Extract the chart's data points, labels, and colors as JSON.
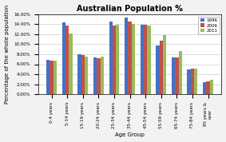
{
  "title": "Australian Population %",
  "xlabel": "Age Group",
  "ylabel": "Percentage of the whole population",
  "categories": [
    "0-4 years",
    "5-14 years",
    "15-19 years",
    "20-24 years",
    "25-34 years",
    "35-44 years",
    "45-54 years",
    "55-59 years",
    "65-74 years",
    "75-84 years",
    "85 years &\nover"
  ],
  "series": {
    "1996": [
      6.8,
      14.3,
      8.0,
      7.3,
      14.6,
      15.3,
      13.9,
      9.8,
      7.3,
      5.0,
      2.4
    ],
    "2006": [
      6.7,
      13.7,
      7.9,
      7.2,
      13.8,
      14.6,
      13.9,
      10.7,
      7.3,
      5.2,
      2.5
    ],
    "2011": [
      6.7,
      12.2,
      7.5,
      7.5,
      13.9,
      14.1,
      13.8,
      11.8,
      8.6,
      5.2,
      2.9
    ]
  },
  "colors": {
    "1996": "#4472c4",
    "2006": "#c0504d",
    "2011": "#9bbb59"
  },
  "ylim": [
    0,
    16
  ],
  "yticks": [
    0,
    2,
    4,
    6,
    8,
    10,
    12,
    14,
    16
  ],
  "background_color": "#f2f2f2",
  "plot_bg_color": "#ffffff",
  "legend_labels": [
    "1996",
    "2006",
    "2011"
  ],
  "title_fontsize": 7,
  "axis_fontsize": 5,
  "tick_fontsize": 4
}
